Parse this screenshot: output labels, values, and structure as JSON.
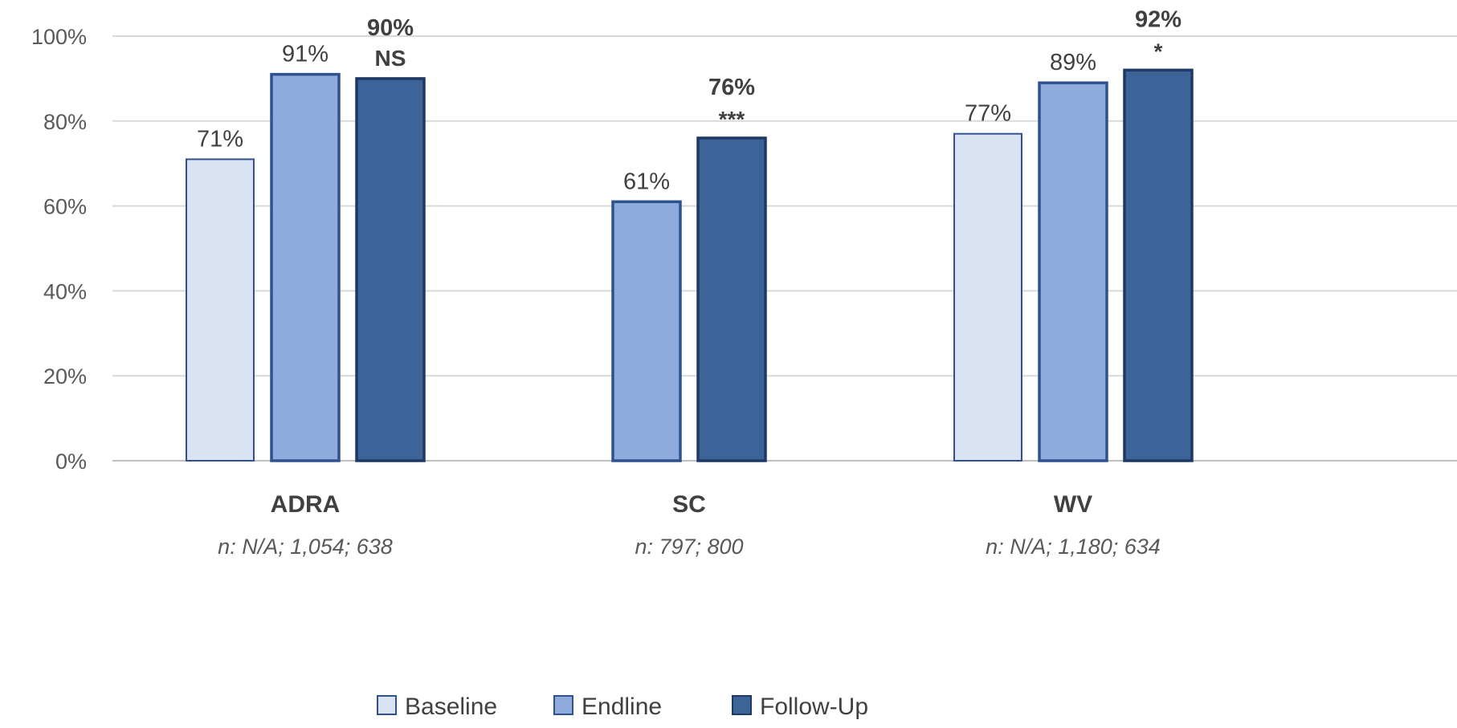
{
  "chart_data": {
    "type": "bar",
    "title": "",
    "xlabel": "",
    "ylabel": "",
    "ylim": [
      0,
      100
    ],
    "yticks": [
      "0%",
      "20%",
      "40%",
      "60%",
      "80%",
      "100%"
    ],
    "grid": true,
    "legend_position": "bottom",
    "categories": [
      "ADRA",
      "SC",
      "WV"
    ],
    "category_notes": [
      "n: N/A; 1,054; 638",
      "n: 797; 800",
      "n: N/A; 1,180; 634"
    ],
    "series": [
      {
        "name": "Baseline",
        "color": "#dae3f3",
        "stroke": "#2f528f",
        "values": [
          71,
          null,
          77
        ],
        "labels": [
          "71%",
          "",
          "77%"
        ],
        "bold": false
      },
      {
        "name": "Endline",
        "color": "#8faadc",
        "stroke": "#2f528f",
        "values": [
          91,
          61,
          89
        ],
        "labels": [
          "91%",
          "61%",
          "89%"
        ],
        "bold": false
      },
      {
        "name": "Follow-Up",
        "color": "#3c6499",
        "stroke": "#1f3864",
        "values": [
          90,
          76,
          92
        ],
        "labels": [
          "90%",
          "76%",
          "92%"
        ],
        "bold": true,
        "significance": [
          "NS",
          "***",
          "*"
        ]
      }
    ]
  }
}
